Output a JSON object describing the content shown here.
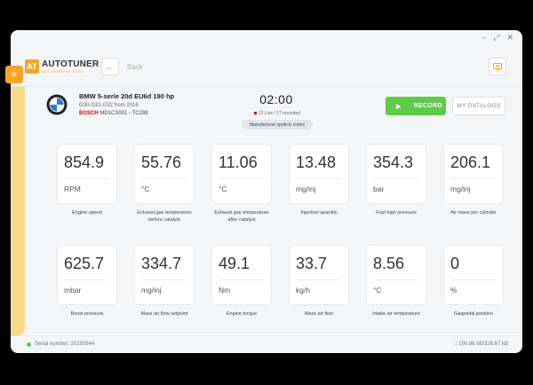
{
  "window_controls": {
    "minimize": "–",
    "maximize": "⤢",
    "close": "✕"
  },
  "header": {
    "logo_mark": "AT",
    "logo_name": "AUTOTUNER",
    "logo_sub": "AUTOMOTIVE TOOL",
    "back_icon": "←",
    "back_label": "Back"
  },
  "menu_icon": "≡",
  "vehicle": {
    "name": "BMW 5-serie 20d EU6d 190 hp",
    "code": "G30-G31-G32 from 2016",
    "ecu_brand": "BOSCH",
    "ecu_model": "MD1CS001 - TC298"
  },
  "recording": {
    "timer": "02:00",
    "status": "12 Live / 17 recorded",
    "mfg_codes_label": "Manufacturer speficic codes",
    "record_label": "RECORD",
    "play_icon": "▶",
    "datalogs_label": "MY DATALOGS"
  },
  "tiles": [
    {
      "value": "854.9",
      "unit": "RPM",
      "label": "Engine speed"
    },
    {
      "value": "55.76",
      "unit": "°C",
      "label": "Exhaust gas temperature before catalyst"
    },
    {
      "value": "11.06",
      "unit": "°C",
      "label": "Exhaust gas temperature after catalyst"
    },
    {
      "value": "13.48",
      "unit": "mg/inj",
      "label": "Injection quantity"
    },
    {
      "value": "354.3",
      "unit": "bar",
      "label": "Fuel high pressure"
    },
    {
      "value": "206.1",
      "unit": "mg/inj",
      "label": "Air mass per cylinder"
    },
    {
      "value": "625.7",
      "unit": "mbar",
      "label": "Boost pressure"
    },
    {
      "value": "334.7",
      "unit": "mg/inj",
      "label": "Mass air flow setpoint"
    },
    {
      "value": "49.1",
      "unit": "Nm",
      "label": "Engine torque"
    },
    {
      "value": "33.7",
      "unit": "kg/h",
      "label": "Mass air flow"
    },
    {
      "value": "8.56",
      "unit": "°C",
      "label": "Intake air temperature"
    },
    {
      "value": "0",
      "unit": "%",
      "label": "Gaspedal position"
    }
  ],
  "footer": {
    "serial": "Serial number: 20200844",
    "transfer": "↕ 100.86 kB/326.67 kB"
  },
  "colors": {
    "accent": "#f5a623",
    "record": "#5ecb49",
    "bosch": "#d0021b"
  }
}
